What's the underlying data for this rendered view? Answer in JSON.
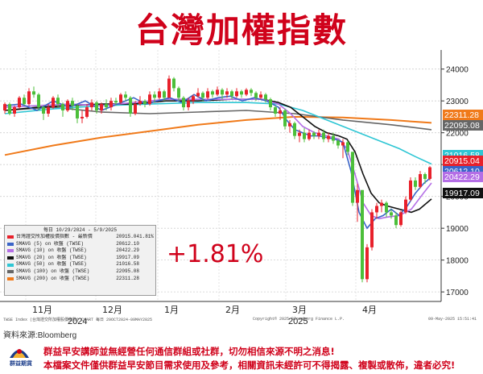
{
  "title": "台灣加權指數",
  "change_text": "+1.81%",
  "colors": {
    "title_red": "#d0021b",
    "up_candle": "#e8212b",
    "down_candle": "#4cbf3a",
    "sma5": "#3a64c8",
    "sma10": "#b46ee6",
    "sma20": "#111111",
    "sma50": "#2ec6d4",
    "sma100": "#666666",
    "sma200": "#f07a1a"
  },
  "legend": {
    "header": "每日 10/29/2024 - 5/9/2025",
    "rows": [
      {
        "name": "台灣證交所加權股價指數 - 最新價",
        "value": "20915.04",
        "change": "1.81%",
        "color": "#e8212b"
      },
      {
        "name": "SMAVG (5)  on 收盤 (TWSE)",
        "value": "20612.10",
        "change": "",
        "color": "#3a64c8"
      },
      {
        "name": "SMAVG (10)  on 收盤 (TWSE)",
        "value": "20422.29",
        "change": "",
        "color": "#b46ee6"
      },
      {
        "name": "SMAVG (20)  on 收盤 (TWSE)",
        "value": "19917.09",
        "change": "",
        "color": "#111111"
      },
      {
        "name": "SMAVG (50)  on 收盤 (TWSE)",
        "value": "21016.58",
        "change": "",
        "color": "#2ec6d4"
      },
      {
        "name": "SMAVG (100)  on 收盤 (TWSE)",
        "value": "22095.08",
        "change": "",
        "color": "#666666"
      },
      {
        "name": "SMAVG (200)  on 收盤 (TWSE)",
        "value": "22311.28",
        "change": "",
        "color": "#f07a1a"
      }
    ]
  },
  "footer": {
    "left": "TWSE Index (台灣證交所加權股價指數) CHART 每日 29OCT2024-09MAY2025",
    "middle": "Copyright© 2025 Bloomberg Finance L.P.",
    "right": "09-May-2025 15:51:41"
  },
  "source": "資料來源:Bloomberg",
  "logo_text": "群益期貨",
  "disclaimer": {
    "line1": "群益早安講師並無經營任何通信群組或社群，切勿相信來源不明之消息!",
    "line2": "本檔案文件僅供群益早安節目需求使用及參考，相關資訊未經許可不得揭露、複製或散佈，違者必究!"
  },
  "chart_data": {
    "type": "candlestick",
    "ylim": [
      16700,
      24600
    ],
    "yticks": [
      "24000",
      "23000",
      "22000",
      "21000",
      "20000",
      "19000",
      "18000",
      "17000"
    ],
    "month_labels": [
      "11月",
      "12月",
      "1月",
      "2月",
      "3月",
      "4月"
    ],
    "year_labels": [
      "2024",
      "2025"
    ],
    "price_tags": [
      {
        "text": "22311.28",
        "value": 22311.28,
        "color": "#f07a1a"
      },
      {
        "text": "22095.08",
        "value": 22095.08,
        "color": "#666666"
      },
      {
        "text": "21016.58",
        "value": 21016.58,
        "color": "#2ec6d4"
      },
      {
        "text": "20915.04",
        "value": 20915.04,
        "color": "#e8212b"
      },
      {
        "text": "20612.10",
        "value": 20612.1,
        "color": "#3a64c8"
      },
      {
        "text": "20422.29",
        "value": 20422.29,
        "color": "#b46ee6"
      },
      {
        "text": "19917.09",
        "value": 19917.09,
        "color": "#111111"
      }
    ],
    "series": [
      {
        "name": "SMAVG (5)",
        "color": "#3a64c8",
        "values": [
          [
            0,
            22850
          ],
          [
            20,
            22900
          ],
          [
            40,
            22700
          ],
          [
            60,
            23000
          ],
          [
            80,
            22800
          ],
          [
            100,
            23000
          ],
          [
            120,
            22700
          ],
          [
            140,
            22900
          ],
          [
            160,
            23100
          ],
          [
            175,
            22900
          ],
          [
            190,
            23000
          ],
          [
            205,
            23100
          ],
          [
            220,
            22950
          ],
          [
            235,
            23200
          ],
          [
            250,
            23000
          ],
          [
            265,
            23100
          ],
          [
            280,
            23150
          ],
          [
            295,
            23000
          ],
          [
            310,
            23100
          ],
          [
            325,
            23000
          ],
          [
            340,
            22800
          ],
          [
            350,
            22400
          ],
          [
            360,
            22100
          ],
          [
            370,
            22000
          ],
          [
            380,
            21900
          ],
          [
            390,
            21900
          ],
          [
            400,
            21850
          ],
          [
            410,
            21800
          ],
          [
            420,
            21700
          ],
          [
            430,
            20800
          ],
          [
            440,
            19500
          ],
          [
            450,
            19000
          ],
          [
            460,
            19300
          ],
          [
            470,
            19400
          ],
          [
            480,
            19600
          ],
          [
            490,
            19400
          ],
          [
            500,
            19700
          ],
          [
            510,
            20100
          ],
          [
            520,
            20400
          ],
          [
            530,
            20612
          ]
        ]
      },
      {
        "name": "SMAVG (10)",
        "color": "#b46ee6",
        "values": [
          [
            0,
            22800
          ],
          [
            40,
            22850
          ],
          [
            80,
            22900
          ],
          [
            120,
            22850
          ],
          [
            160,
            22950
          ],
          [
            200,
            23050
          ],
          [
            240,
            23050
          ],
          [
            280,
            23050
          ],
          [
            320,
            23050
          ],
          [
            340,
            22900
          ],
          [
            355,
            22600
          ],
          [
            370,
            22200
          ],
          [
            385,
            22000
          ],
          [
            400,
            21900
          ],
          [
            415,
            21800
          ],
          [
            425,
            21500
          ],
          [
            435,
            20700
          ],
          [
            445,
            19800
          ],
          [
            455,
            19400
          ],
          [
            465,
            19300
          ],
          [
            475,
            19350
          ],
          [
            490,
            19400
          ],
          [
            505,
            19600
          ],
          [
            520,
            20100
          ],
          [
            530,
            20422
          ]
        ]
      },
      {
        "name": "SMAVG (20)",
        "color": "#111111",
        "values": [
          [
            0,
            22700
          ],
          [
            40,
            22800
          ],
          [
            80,
            22850
          ],
          [
            120,
            22900
          ],
          [
            160,
            22900
          ],
          [
            200,
            23000
          ],
          [
            240,
            23000
          ],
          [
            280,
            23050
          ],
          [
            320,
            23050
          ],
          [
            340,
            22950
          ],
          [
            355,
            22800
          ],
          [
            370,
            22500
          ],
          [
            385,
            22200
          ],
          [
            400,
            22000
          ],
          [
            415,
            21900
          ],
          [
            425,
            21800
          ],
          [
            435,
            21400
          ],
          [
            445,
            20700
          ],
          [
            455,
            20100
          ],
          [
            465,
            19800
          ],
          [
            475,
            19700
          ],
          [
            490,
            19600
          ],
          [
            505,
            19500
          ],
          [
            515,
            19600
          ],
          [
            530,
            19917
          ]
        ]
      },
      {
        "name": "SMAVG (50)",
        "color": "#2ec6d4",
        "values": [
          [
            0,
            22600
          ],
          [
            60,
            22750
          ],
          [
            120,
            22850
          ],
          [
            180,
            22900
          ],
          [
            240,
            22950
          ],
          [
            300,
            22950
          ],
          [
            340,
            22900
          ],
          [
            370,
            22700
          ],
          [
            400,
            22400
          ],
          [
            430,
            22100
          ],
          [
            460,
            21800
          ],
          [
            490,
            21500
          ],
          [
            510,
            21250
          ],
          [
            530,
            21016
          ]
        ]
      },
      {
        "name": "SMAVG (100)",
        "color": "#666666",
        "values": [
          [
            0,
            22700
          ],
          [
            60,
            22800
          ],
          [
            120,
            22650
          ],
          [
            180,
            22600
          ],
          [
            240,
            22650
          ],
          [
            300,
            22700
          ],
          [
            360,
            22600
          ],
          [
            420,
            22400
          ],
          [
            480,
            22250
          ],
          [
            530,
            22095
          ]
        ]
      },
      {
        "name": "SMAVG (200)",
        "color": "#f07a1a",
        "values": [
          [
            0,
            21300
          ],
          [
            60,
            21600
          ],
          [
            120,
            21850
          ],
          [
            180,
            22050
          ],
          [
            240,
            22250
          ],
          [
            300,
            22400
          ],
          [
            360,
            22500
          ],
          [
            420,
            22480
          ],
          [
            480,
            22400
          ],
          [
            530,
            22311
          ]
        ]
      }
    ],
    "candles": [
      [
        0,
        22700,
        22900,
        22600,
        22950
      ],
      [
        6,
        22900,
        22600,
        22550,
        22950
      ],
      [
        12,
        22600,
        22800,
        22500,
        22850
      ],
      [
        18,
        22800,
        23100,
        22750,
        23150
      ],
      [
        24,
        23100,
        22900,
        22850,
        23200
      ],
      [
        30,
        22900,
        23300,
        22850,
        23400
      ],
      [
        36,
        23300,
        23200,
        23100,
        23450
      ],
      [
        42,
        23200,
        22800,
        22700,
        23250
      ],
      [
        48,
        22800,
        22600,
        22400,
        22850
      ],
      [
        54,
        22600,
        22800,
        22500,
        22900
      ],
      [
        60,
        22800,
        23100,
        22750,
        23150
      ],
      [
        66,
        23100,
        22900,
        22800,
        23200
      ],
      [
        72,
        22900,
        22700,
        22500,
        22950
      ],
      [
        78,
        22700,
        23000,
        22650,
        23050
      ],
      [
        84,
        23000,
        22850,
        22700,
        23100
      ],
      [
        90,
        22850,
        22450,
        22300,
        22900
      ],
      [
        96,
        22450,
        22500,
        22300,
        22700
      ],
      [
        102,
        22500,
        22800,
        22450,
        22900
      ],
      [
        108,
        22800,
        22950,
        22700,
        23050
      ],
      [
        114,
        22950,
        22700,
        22600,
        23000
      ],
      [
        120,
        22700,
        22900,
        22600,
        22950
      ],
      [
        126,
        22900,
        22800,
        22700,
        23050
      ],
      [
        132,
        22800,
        23000,
        22700,
        23100
      ],
      [
        138,
        23000,
        22950,
        22850,
        23100
      ],
      [
        144,
        22950,
        23200,
        22900,
        23250
      ],
      [
        150,
        23200,
        23100,
        23000,
        23300
      ],
      [
        156,
        23100,
        22600,
        22500,
        23150
      ],
      [
        162,
        22600,
        22900,
        22550,
        23000
      ],
      [
        168,
        22900,
        23000,
        22850,
        23150
      ],
      [
        174,
        23000,
        22900,
        22800,
        23050
      ],
      [
        180,
        22900,
        23200,
        22850,
        23300
      ],
      [
        186,
        23200,
        23100,
        22950,
        23300
      ],
      [
        192,
        23100,
        23300,
        23050,
        23400
      ],
      [
        198,
        23300,
        23100,
        23000,
        23350
      ],
      [
        204,
        23100,
        23700,
        23100,
        23800
      ],
      [
        210,
        23700,
        23400,
        23300,
        23750
      ],
      [
        216,
        23400,
        23100,
        23000,
        23450
      ],
      [
        222,
        23100,
        22800,
        22700,
        23150
      ],
      [
        228,
        22800,
        23000,
        22700,
        23100
      ],
      [
        234,
        23000,
        23150,
        22900,
        23200
      ],
      [
        240,
        23150,
        23250,
        23100,
        23400
      ],
      [
        246,
        23250,
        23100,
        23000,
        23300
      ],
      [
        252,
        23100,
        23300,
        23050,
        23400
      ],
      [
        258,
        23300,
        23200,
        23100,
        23350
      ],
      [
        264,
        23200,
        23350,
        23150,
        23450
      ],
      [
        270,
        23350,
        23200,
        23050,
        23400
      ],
      [
        276,
        23200,
        23300,
        23100,
        23400
      ],
      [
        282,
        23300,
        23150,
        23050,
        23350
      ],
      [
        288,
        23150,
        23300,
        23100,
        23400
      ],
      [
        294,
        23300,
        23200,
        23100,
        23350
      ],
      [
        300,
        23200,
        23350,
        23150,
        23400
      ],
      [
        306,
        23350,
        23250,
        23150,
        23400
      ],
      [
        312,
        23250,
        23100,
        23000,
        23300
      ],
      [
        318,
        23100,
        23200,
        23050,
        23300
      ],
      [
        324,
        23200,
        23050,
        22950,
        23250
      ],
      [
        330,
        23050,
        22800,
        22700,
        23100
      ],
      [
        336,
        22800,
        22600,
        22500,
        22850
      ],
      [
        342,
        22600,
        22700,
        22400,
        22800
      ],
      [
        348,
        22700,
        22200,
        22100,
        22750
      ],
      [
        354,
        22200,
        22300,
        22000,
        22400
      ],
      [
        360,
        22300,
        21900,
        21800,
        22350
      ],
      [
        366,
        21900,
        22000,
        21700,
        22100
      ],
      [
        372,
        22000,
        21800,
        21700,
        22150
      ],
      [
        378,
        21800,
        22000,
        21750,
        22100
      ],
      [
        384,
        22000,
        21900,
        21800,
        22050
      ],
      [
        390,
        21900,
        22000,
        21800,
        22100
      ],
      [
        396,
        22000,
        21800,
        21700,
        22100
      ],
      [
        402,
        21800,
        21900,
        21700,
        22000
      ],
      [
        408,
        21900,
        21750,
        21650,
        22000
      ],
      [
        414,
        21750,
        21600,
        21500,
        21800
      ],
      [
        420,
        21600,
        21700,
        21200,
        21800
      ],
      [
        426,
        21700,
        21400,
        21300,
        21750
      ],
      [
        432,
        21400,
        19800,
        19700,
        21400
      ],
      [
        438,
        19800,
        20200,
        19200,
        20400
      ],
      [
        444,
        20200,
        17400,
        17300,
        20200
      ],
      [
        450,
        17400,
        18400,
        17300,
        18500
      ],
      [
        456,
        18400,
        19500,
        18300,
        19600
      ],
      [
        462,
        19500,
        19700,
        19300,
        19800
      ],
      [
        468,
        19700,
        19800,
        19500,
        19900
      ],
      [
        474,
        19800,
        19500,
        19350,
        19850
      ],
      [
        480,
        19500,
        19400,
        19300,
        19600
      ],
      [
        486,
        19400,
        19100,
        19000,
        19500
      ],
      [
        492,
        19100,
        19500,
        19050,
        19550
      ],
      [
        498,
        19500,
        19900,
        19450,
        20000
      ],
      [
        504,
        19900,
        20500,
        19850,
        20600
      ],
      [
        510,
        20500,
        20300,
        20200,
        20600
      ],
      [
        516,
        20300,
        20700,
        20250,
        20800
      ],
      [
        522,
        20700,
        20550,
        20400,
        20750
      ],
      [
        528,
        20550,
        20915,
        20500,
        20950
      ]
    ]
  }
}
